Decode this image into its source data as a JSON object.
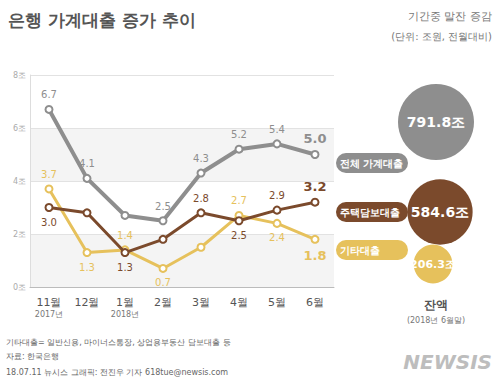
{
  "chart_data": {
    "type": "line",
    "title": "은행 가계대출 증가 추이",
    "subtitle": "기간중 말잔 증감",
    "annotations": {
      "unit": "(단위: 조원, 전월대비)",
      "balance_title": "잔액",
      "balance_date": "(2018년 6월말)",
      "note": "기타대출= 일반신용, 마이너스통장, 상업용부동산 담보대출 등",
      "source": "자료: 한국은행",
      "credit": "18.07.11 뉴시스 그래픽: 전진우 기자 618tue@newsis.com",
      "brand": "NEWSIS"
    },
    "categories": [
      "11월\n2017년",
      "12월",
      "1월\n2018년",
      "2월",
      "3월",
      "4월",
      "5월",
      "6월"
    ],
    "series": [
      {
        "name": "전체 가계대출",
        "color": "#8e8e8e",
        "values": [
          6.7,
          4.1,
          2.7,
          2.5,
          4.3,
          5.2,
          5.4,
          5.0
        ],
        "value_labels": [
          "6.7",
          "4.1",
          null,
          "2.5",
          "4.3",
          "5.2",
          "5.4",
          "5.0"
        ],
        "balance": 791.8,
        "balance_label": "791.8조"
      },
      {
        "name": "주택담보대출",
        "color": "#7b4a2c",
        "values": [
          3.0,
          2.8,
          1.3,
          1.8,
          2.8,
          2.5,
          2.9,
          3.2
        ],
        "value_labels": [
          "3.0",
          null,
          "1.3",
          null,
          "2.8",
          "2.5",
          "2.9",
          "3.2"
        ],
        "balance": 584.6,
        "balance_label": "584.6조"
      },
      {
        "name": "기타대출",
        "color": "#e6c15c",
        "values": [
          3.7,
          1.3,
          1.4,
          0.7,
          1.5,
          2.7,
          2.4,
          1.8
        ],
        "value_labels": [
          "3.7",
          "1.3",
          "1.4",
          "0.7",
          null,
          "2.7",
          "2.4",
          "1.8"
        ],
        "balance": 206.3,
        "balance_label": "206.3조"
      }
    ],
    "ylim": [
      0,
      8
    ],
    "yticks": [
      {
        "value": 0,
        "label": "0조"
      },
      {
        "value": 2,
        "label": "2조"
      },
      {
        "value": 4,
        "label": "4조"
      },
      {
        "value": 6,
        "label": "6조"
      },
      {
        "value": 8,
        "label": "8조"
      }
    ],
    "grid": true,
    "data_labels": true
  }
}
